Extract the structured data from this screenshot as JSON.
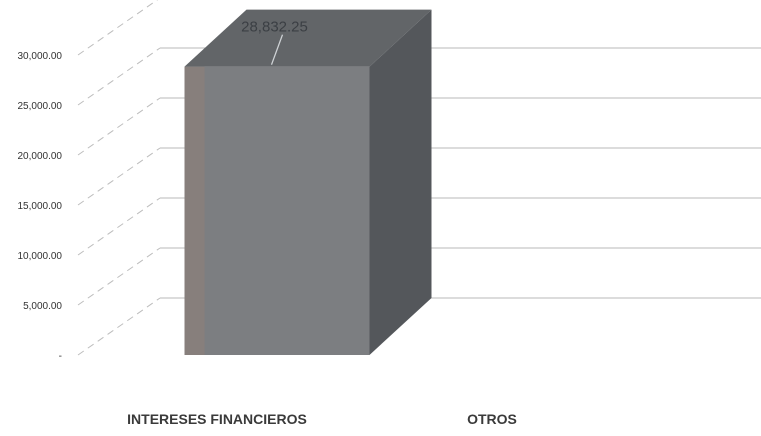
{
  "chart_data": {
    "type": "bar",
    "categories": [
      "INTERESES FINANCIEROS",
      "OTROS"
    ],
    "values": [
      28832.25,
      0
    ],
    "data_labels": [
      "28,832.25",
      ""
    ],
    "y_ticks": [
      "-",
      "5,000.00",
      "10,000.00",
      "15,000.00",
      "20,000.00",
      "25,000.00",
      "30,000.00"
    ],
    "ylim": [
      0,
      35000
    ],
    "grid": true,
    "style": "3d-column",
    "colors": {
      "bar_front": "#7c7e81",
      "bar_top": "#626568",
      "bar_side": "#54575b",
      "bar_edge_tint": "#8f7f79"
    }
  }
}
